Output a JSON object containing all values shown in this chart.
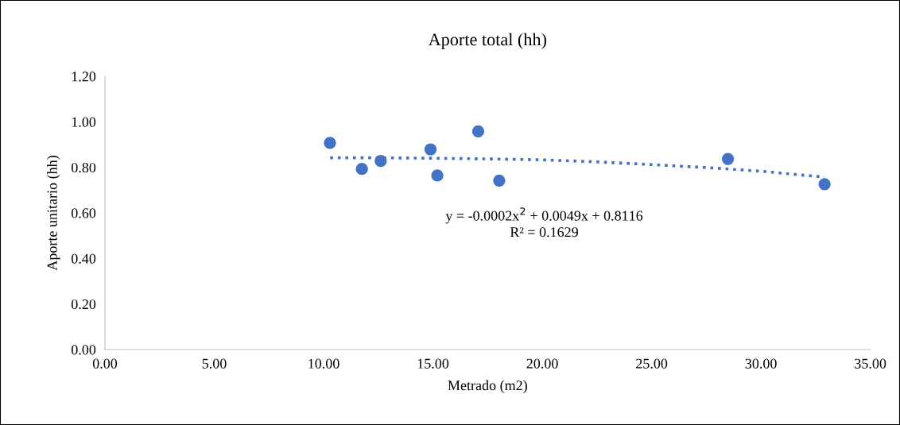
{
  "chart_data": {
    "type": "scatter",
    "title": "Aporte total (hh)",
    "xlabel": "Metrado (m2)",
    "ylabel": "Aporte unitario (hh)",
    "xlim": [
      0,
      35
    ],
    "xticks": [
      {
        "value": 0,
        "label": "0.00"
      },
      {
        "value": 5,
        "label": "5.00"
      },
      {
        "value": 10,
        "label": "10.00"
      },
      {
        "value": 15,
        "label": "15.00"
      },
      {
        "value": 20,
        "label": "20.00"
      },
      {
        "value": 25,
        "label": "25.00"
      },
      {
        "value": 30,
        "label": "30.00"
      },
      {
        "value": 35,
        "label": "35.00"
      }
    ],
    "ylim": [
      0,
      1.2
    ],
    "yticks": [
      {
        "value": 0,
        "label": "0.00"
      },
      {
        "value": 0.2,
        "label": "0.20"
      },
      {
        "value": 0.4,
        "label": "0.40"
      },
      {
        "value": 0.6,
        "label": "0.60"
      },
      {
        "value": 0.8,
        "label": "0.80"
      },
      {
        "value": 1.0,
        "label": "1.00"
      },
      {
        "value": 1.2,
        "label": "1.20"
      }
    ],
    "grid": false,
    "legend": false,
    "series": [
      {
        "color": "#4472c4",
        "marker": "circle",
        "x": [
          10.29,
          11.75,
          12.61,
          14.89,
          15.2,
          17.07,
          18.03,
          28.49,
          32.91
        ],
        "values": [
          0.907,
          0.793,
          0.828,
          0.879,
          0.764,
          0.958,
          0.742,
          0.837,
          0.726
        ]
      },
      {
        "type": "line",
        "color": "#4472c4",
        "line_style": "dotted",
        "marker": "none",
        "x": [
          10.3,
          12.5,
          15,
          17.5,
          20,
          22.5,
          25,
          27.5,
          30,
          32.9
        ],
        "values": [
          0.842,
          0.842,
          0.84,
          0.837,
          0.833,
          0.824,
          0.812,
          0.799,
          0.783,
          0.757
        ]
      }
    ],
    "annotations": [
      "y = -0.0002x$^{2}$ + 0.0049x + 0.8116",
      "R² = 0.1629"
    ]
  }
}
